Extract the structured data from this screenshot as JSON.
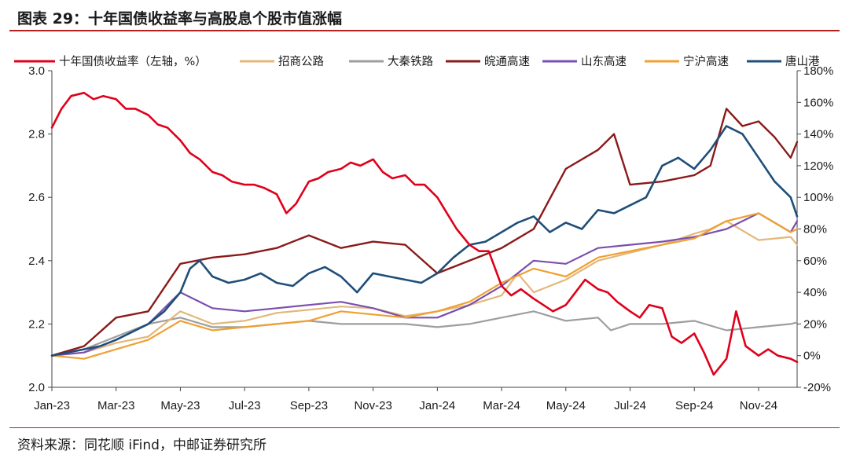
{
  "header": {
    "title": "图表 29：十年国债收益率与高股息个股市值涨幅"
  },
  "footer": {
    "source": "资料来源：同花顺 iFind，中邮证券研究所"
  },
  "colors": {
    "rule": "#b22222",
    "axis": "#444444"
  },
  "chart_data": {
    "type": "line",
    "title": "",
    "xlabel": "",
    "ylabel": "",
    "x_ticks": [
      "Jan-23",
      "Mar-23",
      "May-23",
      "Jul-23",
      "Sep-23",
      "Nov-23",
      "Jan-24",
      "Mar-24",
      "May-24",
      "Jul-24",
      "Sep-24",
      "Nov-24"
    ],
    "x_range": [
      0,
      23.2
    ],
    "y_left": {
      "ticks": [
        "2.0",
        "2.2",
        "2.4",
        "2.6",
        "2.8",
        "3.0"
      ],
      "range": [
        2.0,
        3.0
      ]
    },
    "y_right": {
      "ticks": [
        "-20%",
        "0%",
        "20%",
        "40%",
        "60%",
        "80%",
        "100%",
        "120%",
        "140%",
        "160%",
        "180%"
      ],
      "range": [
        -20,
        180
      ]
    },
    "grid": false,
    "legend_position": "top",
    "series": [
      {
        "name": "十年国债收益率（左轴，%）",
        "axis": "left",
        "color": "#e0001b",
        "width": 2.6,
        "x": [
          0,
          0.3,
          0.6,
          1,
          1.3,
          1.6,
          2,
          2.3,
          2.6,
          3,
          3.3,
          3.6,
          4,
          4.3,
          4.6,
          5,
          5.3,
          5.6,
          6,
          6.3,
          6.6,
          7,
          7.3,
          7.6,
          8,
          8.3,
          8.6,
          9,
          9.3,
          9.6,
          10,
          10.3,
          10.6,
          11,
          11.3,
          11.6,
          12,
          12.3,
          12.6,
          13,
          13.3,
          13.6,
          14,
          14.3,
          14.6,
          15,
          15.3,
          15.6,
          16,
          16.3,
          16.6,
          17,
          17.3,
          17.6,
          18,
          18.3,
          18.6,
          19,
          19.3,
          19.6,
          20,
          20.3,
          20.6,
          21,
          21.3,
          21.6,
          22,
          22.3,
          22.6,
          23,
          23.2
        ],
        "y": [
          2.82,
          2.88,
          2.92,
          2.93,
          2.91,
          2.92,
          2.91,
          2.88,
          2.88,
          2.86,
          2.83,
          2.82,
          2.78,
          2.74,
          2.72,
          2.68,
          2.67,
          2.65,
          2.64,
          2.64,
          2.63,
          2.61,
          2.55,
          2.58,
          2.65,
          2.66,
          2.68,
          2.69,
          2.71,
          2.7,
          2.72,
          2.68,
          2.66,
          2.67,
          2.64,
          2.64,
          2.6,
          2.55,
          2.5,
          2.45,
          2.43,
          2.43,
          2.32,
          2.29,
          2.31,
          2.28,
          2.26,
          2.24,
          2.26,
          2.3,
          2.34,
          2.31,
          2.3,
          2.27,
          2.24,
          2.22,
          2.26,
          2.25,
          2.16,
          2.14,
          2.17,
          2.11,
          2.04,
          2.09,
          2.24,
          2.13,
          2.1,
          2.12,
          2.1,
          2.09,
          2.08
        ]
      },
      {
        "name": "招商公路",
        "axis": "right",
        "color": "#e3b77a",
        "width": 2.2,
        "x": [
          0,
          1,
          2,
          3,
          4,
          5,
          6,
          7,
          8,
          9,
          10,
          11,
          12,
          13,
          14,
          14.5,
          15,
          16,
          17,
          18,
          19,
          20,
          20.5,
          21,
          22,
          23,
          23.2
        ],
        "y": [
          0,
          2,
          8,
          12,
          28,
          20,
          22,
          27,
          29,
          31,
          30,
          25,
          28,
          32,
          38,
          52,
          40,
          48,
          60,
          65,
          70,
          77,
          80,
          85,
          73,
          75,
          70
        ]
      },
      {
        "name": "大秦铁路",
        "axis": "right",
        "color": "#9e9e9e",
        "width": 2.2,
        "x": [
          0,
          1,
          2,
          3,
          4,
          5,
          6,
          7,
          8,
          9,
          10,
          11,
          12,
          13,
          14,
          15,
          16,
          17,
          17.4,
          18,
          19,
          20,
          21,
          22,
          23,
          23.2
        ],
        "y": [
          0,
          4,
          12,
          20,
          24,
          18,
          18,
          20,
          22,
          20,
          20,
          20,
          18,
          20,
          24,
          28,
          22,
          24,
          16,
          20,
          20,
          22,
          16,
          18,
          20,
          21
        ]
      },
      {
        "name": "皖通高速",
        "axis": "right",
        "color": "#8b1a1a",
        "width": 2.4,
        "x": [
          0,
          1,
          2,
          3,
          4,
          5,
          6,
          7,
          8,
          9,
          10,
          11,
          12,
          13,
          14,
          15,
          16,
          17,
          17.5,
          18,
          19,
          20,
          20.5,
          21,
          21.5,
          22,
          22.5,
          23,
          23.2
        ],
        "y": [
          0,
          6,
          24,
          28,
          58,
          62,
          64,
          68,
          76,
          68,
          72,
          70,
          52,
          60,
          68,
          80,
          118,
          130,
          140,
          108,
          110,
          114,
          120,
          156,
          145,
          148,
          138,
          125,
          135
        ]
      },
      {
        "name": "山东高速",
        "axis": "right",
        "color": "#7a4fb0",
        "width": 2.2,
        "x": [
          0,
          1,
          2,
          3,
          4,
          5,
          6,
          7,
          8,
          9,
          10,
          11,
          12,
          13,
          14,
          15,
          16,
          17,
          18,
          19,
          20,
          21,
          22,
          23,
          23.2
        ],
        "y": [
          0,
          2,
          10,
          20,
          40,
          30,
          28,
          30,
          32,
          34,
          30,
          24,
          24,
          32,
          44,
          60,
          58,
          68,
          70,
          72,
          75,
          80,
          90,
          78,
          85
        ]
      },
      {
        "name": "宁沪高速",
        "axis": "right",
        "color": "#f0a032",
        "width": 2.2,
        "x": [
          0,
          1,
          2,
          3,
          4,
          5,
          6,
          7,
          8,
          9,
          10,
          11,
          12,
          13,
          14,
          15,
          16,
          17,
          18,
          19,
          20,
          21,
          22,
          23,
          23.2
        ],
        "y": [
          0,
          -2,
          4,
          10,
          22,
          16,
          18,
          20,
          22,
          28,
          26,
          24,
          28,
          34,
          46,
          55,
          50,
          62,
          66,
          70,
          74,
          85,
          90,
          78,
          80
        ]
      },
      {
        "name": "唐山港",
        "axis": "right",
        "color": "#1f4e79",
        "width": 2.6,
        "x": [
          0,
          0.5,
          1,
          1.5,
          2,
          2.5,
          3,
          3.5,
          4,
          4.3,
          4.6,
          5,
          5.5,
          6,
          6.5,
          7,
          7.5,
          8,
          8.5,
          9,
          9.5,
          10,
          10.5,
          11,
          11.5,
          12,
          12.5,
          13,
          13.5,
          14,
          14.5,
          15,
          15.5,
          16,
          16.5,
          17,
          17.5,
          18,
          18.5,
          19,
          19.5,
          20,
          20.5,
          21,
          21.5,
          22,
          22.5,
          23,
          23.2
        ],
        "y": [
          0,
          2,
          4,
          6,
          10,
          15,
          20,
          28,
          40,
          55,
          60,
          50,
          46,
          48,
          52,
          46,
          44,
          52,
          56,
          50,
          40,
          52,
          50,
          48,
          46,
          52,
          62,
          70,
          72,
          78,
          84,
          88,
          78,
          84,
          80,
          92,
          90,
          95,
          100,
          120,
          125,
          118,
          130,
          145,
          140,
          125,
          110,
          100,
          88
        ]
      }
    ]
  }
}
